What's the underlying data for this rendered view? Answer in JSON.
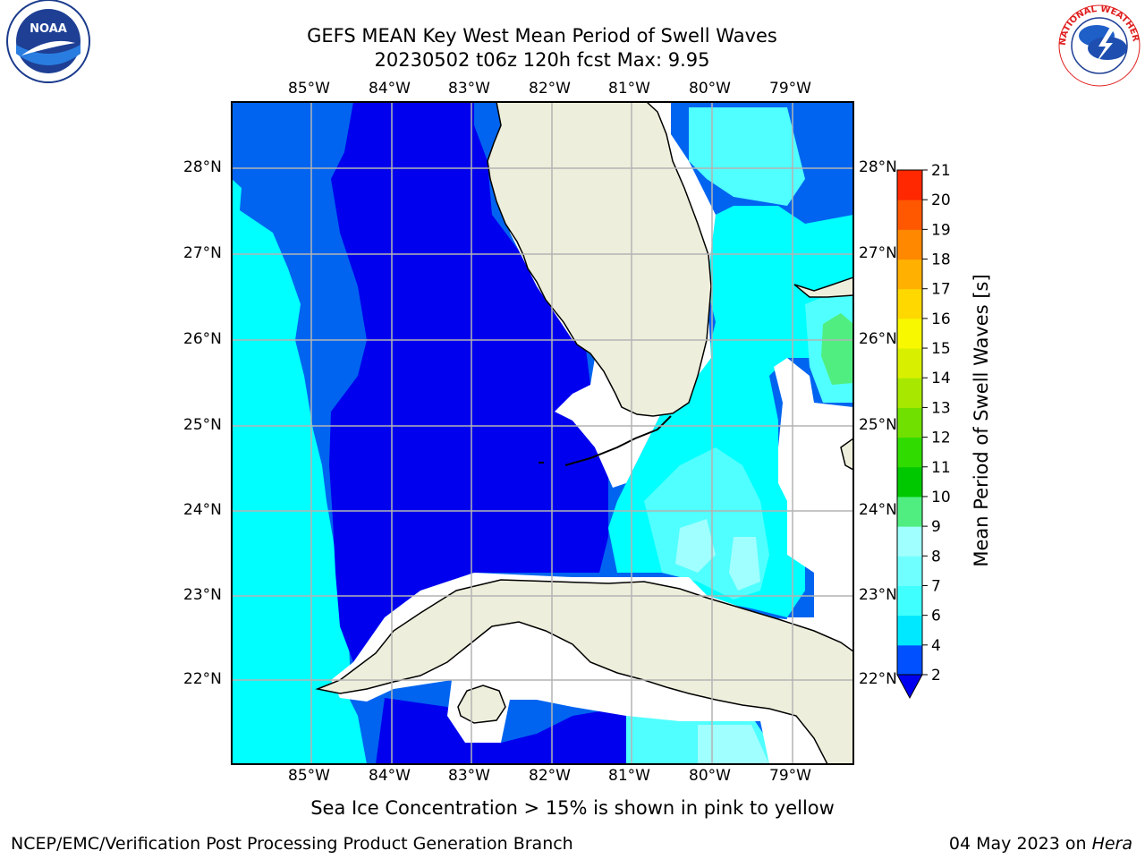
{
  "header": {
    "title_line1": "GEFS MEAN Key West Mean Period of Swell Waves",
    "title_line2": "20230502 t06z 120h fcst   Max: 9.95"
  },
  "logos": {
    "left": {
      "name": "noaa-logo",
      "text": "NOAA",
      "ring": "NATIONAL OCEANIC AND ATMOSPHERIC ADMINISTRATION"
    },
    "right": {
      "name": "nws-logo",
      "text": "NATIONAL WEATHER SERVICE"
    }
  },
  "map": {
    "lon_labels": [
      "85°W",
      "84°W",
      "83°W",
      "82°W",
      "81°W",
      "80°W",
      "79°W"
    ],
    "lat_labels": [
      "28°N",
      "27°N",
      "26°N",
      "25°N",
      "24°N",
      "23°N",
      "22°N"
    ]
  },
  "colorbar": {
    "label": "Mean Period of Swell Waves [s]",
    "ticks": [
      "2",
      "4",
      "6",
      "7",
      "8",
      "9",
      "10",
      "11",
      "12",
      "13",
      "14",
      "15",
      "16",
      "17",
      "18",
      "19",
      "20",
      "21"
    ],
    "colors": [
      "#0050ff",
      "#00e8ff",
      "#40ffff",
      "#70ffff",
      "#a0ffff",
      "#50ee80",
      "#00c800",
      "#30dc00",
      "#70e000",
      "#a8e800",
      "#d8f000",
      "#f8f800",
      "#ffd800",
      "#ffb000",
      "#ff8800",
      "#ff5800",
      "#ff2800",
      "#ff0000"
    ],
    "underflow_color": "#0000ee"
  },
  "legend_colors": {
    "land": "#eeeedc",
    "deep_blue": "#0000ee",
    "blue": "#0064f0",
    "cyan": "#00ffff",
    "light_cyan": "#50ffff",
    "pale_cyan": "#a0ffff",
    "green": "#50ee80",
    "grid": "#b4b4b4"
  },
  "footer": {
    "note": "Sea Ice Concentration > 15% is shown in pink to yellow",
    "left": "NCEP/EMC/Verification Post Processing Product Generation Branch",
    "date": "04 May 2023 on ",
    "host": "Hera"
  }
}
